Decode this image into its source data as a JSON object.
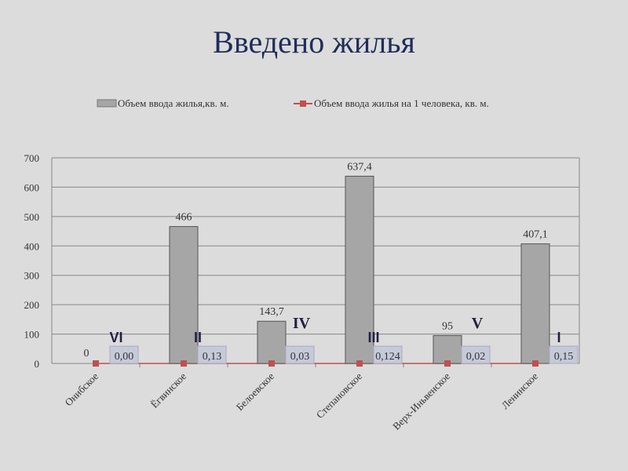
{
  "chart_data": {
    "type": "bar",
    "title": "Введено жилья",
    "categories": [
      "Онибское",
      "Ёгвинское",
      "Белоевское",
      "Степановское",
      "Верх-Иньвенское",
      "Ленинское"
    ],
    "series": [
      {
        "name": "Объем ввода жилья,кв. м.",
        "type": "bar",
        "color": "#a6a6a6",
        "values": [
          0,
          466,
          143.7,
          637.4,
          95,
          407.1
        ],
        "labels": [
          "0",
          "466",
          "143,7",
          "637,4",
          "95",
          "407,1"
        ]
      },
      {
        "name": "Объем ввода жилья на 1 человека, кв. м.",
        "type": "line",
        "color": "#c0504d",
        "values": [
          0,
          0.13,
          0.03,
          0.124,
          0.02,
          0.15
        ],
        "labels": [
          "0,00",
          "0,13",
          "0,03",
          "0,124",
          "0,02",
          "0,15"
        ]
      }
    ],
    "ranks": [
      "VI",
      "II",
      "IV",
      "III",
      "V",
      "I"
    ],
    "yticks": [
      0,
      100,
      200,
      300,
      400,
      500,
      600,
      700
    ],
    "ylim": [
      0,
      700
    ],
    "grid": true,
    "legend": "top"
  }
}
